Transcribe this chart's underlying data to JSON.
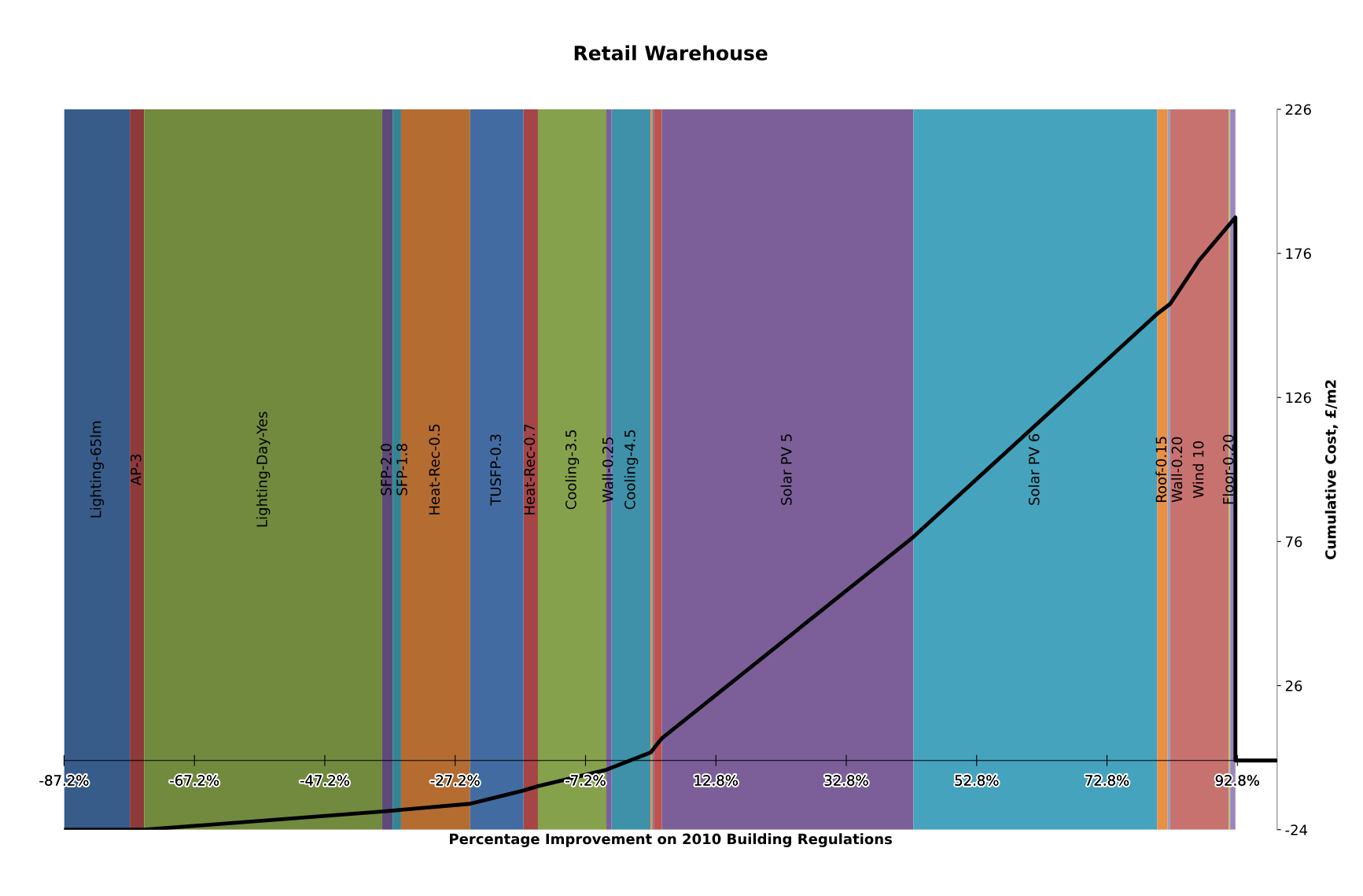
{
  "chart_data": {
    "type": "line",
    "title": "Retail Warehouse",
    "xlabel": "Percentage Improvement on 2010 Building Regulations",
    "ylabel": "Cumulative Cost, £/m2",
    "xlim": [
      -87.2,
      98.9
    ],
    "xticks": [
      {
        "value": -87.2,
        "label": "-87.2%"
      },
      {
        "value": -67.2,
        "label": "-67.2%"
      },
      {
        "value": -47.2,
        "label": "-47.2%"
      },
      {
        "value": -27.2,
        "label": "-27.2%"
      },
      {
        "value": -7.2,
        "label": "-7.2%"
      },
      {
        "value": 12.8,
        "label": "12.8%"
      },
      {
        "value": 32.8,
        "label": "32.8%"
      },
      {
        "value": 52.8,
        "label": "52.8%"
      },
      {
        "value": 72.8,
        "label": "72.8%"
      },
      {
        "value": 92.8,
        "label": "92.8%"
      }
    ],
    "ylim": [
      -24,
      226
    ],
    "yticks": [
      -24,
      26,
      76,
      126,
      176,
      226
    ],
    "grid": false,
    "legend": false,
    "series": [
      {
        "color": "#000000",
        "x": [
          -87.2,
          -74.9,
          -38.4,
          -24.9,
          -16.7,
          -14.5,
          -4.0,
          2.8,
          4.5,
          43.1,
          80.5,
          82.5,
          86.9,
          92.5,
          92.5,
          98.9
        ],
        "values": [
          -24,
          -24,
          -17.7,
          -15.0,
          -10.4,
          -8.9,
          -3.2,
          2.8,
          7.7,
          77.6,
          155,
          158.5,
          173.5,
          188.5,
          0,
          0
        ]
      }
    ],
    "bands": [
      {
        "axis": "x",
        "from": -87.2,
        "to": -77.1,
        "label": "Lighting-65lm",
        "color": "#375c8a"
      },
      {
        "axis": "x",
        "from": -77.1,
        "to": -74.9,
        "label": "AP-3",
        "color": "#8c3a3a"
      },
      {
        "axis": "x",
        "from": -74.9,
        "to": -38.4,
        "label": "Lighting-Day-Yes",
        "color": "#718a3e"
      },
      {
        "axis": "x",
        "from": -38.4,
        "to": -36.8,
        "label": "SFP-2.0",
        "color": "#5e4a7a"
      },
      {
        "axis": "x",
        "from": -36.8,
        "to": -35.5,
        "label": "SFP-1.8",
        "color": "#338593"
      },
      {
        "axis": "x",
        "from": -35.5,
        "to": -24.9,
        "label": "Heat-Rec-0.5",
        "color": "#b46c31"
      },
      {
        "axis": "x",
        "from": -24.9,
        "to": -16.7,
        "label": "TUSFP-0.3",
        "color": "#426ca1"
      },
      {
        "axis": "x",
        "from": -16.7,
        "to": -14.5,
        "label": "Heat-Rec-0.7",
        "color": "#a54545"
      },
      {
        "axis": "x",
        "from": -14.5,
        "to": -4.0,
        "label": "Cooling-3.5",
        "color": "#86a14c"
      },
      {
        "axis": "x",
        "from": -4.0,
        "to": -3.2,
        "label": "Wall-0.25",
        "color": "#7a5f9f"
      },
      {
        "axis": "x",
        "from": -3.2,
        "to": 2.8,
        "label": "Cooling-4.5",
        "color": "#3e91a9"
      },
      {
        "axis": "x",
        "from": 2.8,
        "to": 3.1,
        "label": null,
        "color": "#e8893a"
      },
      {
        "axis": "x",
        "from": 3.1,
        "to": 3.3,
        "label": null,
        "color": "#4b78b5"
      },
      {
        "axis": "x",
        "from": 3.3,
        "to": 4.5,
        "label": null,
        "color": "#c0504d"
      },
      {
        "axis": "x",
        "from": 4.5,
        "to": 43.1,
        "label": "Solar PV 5",
        "color": "#7c5f99"
      },
      {
        "axis": "x",
        "from": 43.1,
        "to": 80.5,
        "label": "Solar PV 6",
        "color": "#45a3bd"
      },
      {
        "axis": "x",
        "from": 80.5,
        "to": 82.1,
        "label": "Roof-0.15",
        "color": "#eb8f43"
      },
      {
        "axis": "x",
        "from": 82.1,
        "to": 82.5,
        "label": "Wall-0.20",
        "color": "#8ea0c8"
      },
      {
        "axis": "x",
        "from": 82.5,
        "to": 91.5,
        "label": "Wind 10",
        "color": "#c87270"
      },
      {
        "axis": "x",
        "from": 91.5,
        "to": 91.7,
        "label": "Floor-0.20",
        "color": "#b0c878"
      },
      {
        "axis": "x",
        "from": 91.7,
        "to": 92.5,
        "label": null,
        "color": "#9b87bb"
      }
    ]
  }
}
